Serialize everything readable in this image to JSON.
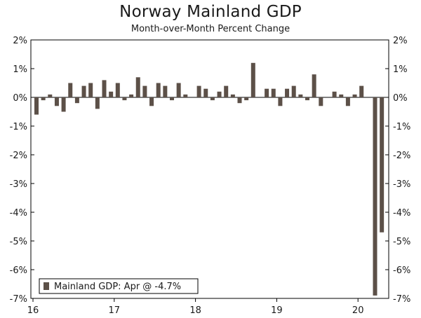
{
  "chart_data": {
    "type": "bar",
    "title": "Norway Mainland GDP",
    "subtitle": "Month-over-Month Percent Change",
    "xlabel": "",
    "ylabel": "",
    "ylim": [
      -7,
      2
    ],
    "y_ticks": [
      "2%",
      "1%",
      "0%",
      "-1%",
      "-2%",
      "-3%",
      "-4%",
      "-5%",
      "-6%",
      "-7%"
    ],
    "y_tick_values": [
      2,
      1,
      0,
      -1,
      -2,
      -3,
      -4,
      -5,
      -6,
      -7
    ],
    "x_ticks": [
      "16",
      "17",
      "18",
      "19",
      "20"
    ],
    "x_tick_indices": [
      0,
      12,
      24,
      36,
      48
    ],
    "grid": false,
    "legend": {
      "label": "Mainland GDP: Apr @ -4.7%",
      "position": "bottom-left"
    },
    "bar_color": "#5c5048",
    "categories": [
      "Jan 2016",
      "Feb 2016",
      "Mar 2016",
      "Apr 2016",
      "May 2016",
      "Jun 2016",
      "Jul 2016",
      "Aug 2016",
      "Sep 2016",
      "Oct 2016",
      "Nov 2016",
      "Dec 2016",
      "Jan 2017",
      "Feb 2017",
      "Mar 2017",
      "Apr 2017",
      "May 2017",
      "Jun 2017",
      "Jul 2017",
      "Aug 2017",
      "Sep 2017",
      "Oct 2017",
      "Nov 2017",
      "Dec 2017",
      "Jan 2018",
      "Feb 2018",
      "Mar 2018",
      "Apr 2018",
      "May 2018",
      "Jun 2018",
      "Jul 2018",
      "Aug 2018",
      "Sep 2018",
      "Oct 2018",
      "Nov 2018",
      "Dec 2018",
      "Jan 2019",
      "Feb 2019",
      "Mar 2019",
      "Apr 2019",
      "May 2019",
      "Jun 2019",
      "Jul 2019",
      "Aug 2019",
      "Sep 2019",
      "Oct 2019",
      "Nov 2019",
      "Dec 2019",
      "Jan 2020",
      "Feb 2020",
      "Mar 2020",
      "Apr 2020"
    ],
    "series": [
      {
        "name": "Mainland GDP",
        "values": [
          -0.6,
          -0.1,
          0.1,
          -0.3,
          -0.5,
          0.5,
          -0.2,
          0.4,
          0.5,
          -0.4,
          0.6,
          0.2,
          0.5,
          -0.1,
          0.1,
          0.7,
          0.4,
          -0.3,
          0.5,
          0.4,
          -0.1,
          0.5,
          0.1,
          0.0,
          0.4,
          0.3,
          -0.1,
          0.2,
          0.4,
          0.1,
          -0.2,
          -0.1,
          1.2,
          0.0,
          0.3,
          0.3,
          -0.3,
          0.3,
          0.4,
          0.1,
          -0.1,
          0.8,
          -0.3,
          0.0,
          0.2,
          0.1,
          -0.3,
          0.1,
          0.4,
          0.0,
          -6.9,
          -4.7
        ]
      }
    ]
  }
}
